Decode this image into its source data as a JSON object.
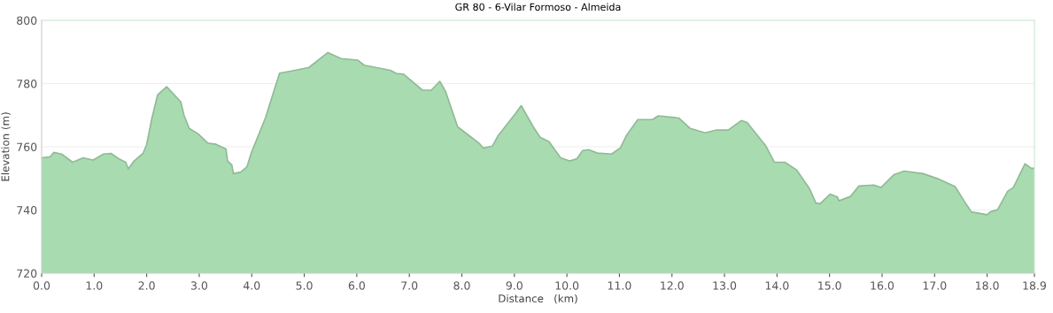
{
  "chart_data": {
    "type": "area",
    "title": "GR 80 - 6-Vilar Formoso - Almeida",
    "xlabel": "Distance   (km)",
    "ylabel": "Elevation (m)",
    "x": [
      0,
      0.16,
      0.23,
      0.38,
      0.59,
      0.79,
      0.98,
      1.18,
      1.32,
      1.46,
      1.6,
      1.65,
      1.76,
      1.93,
      2.0,
      2.1,
      2.21,
      2.38,
      2.65,
      2.71,
      2.81,
      2.98,
      3.16,
      3.32,
      3.51,
      3.54,
      3.62,
      3.65,
      3.79,
      3.91,
      3.99,
      4.26,
      4.53,
      4.76,
      5.09,
      5.45,
      5.7,
      6.02,
      6.14,
      6.64,
      6.75,
      6.89,
      7.25,
      7.42,
      7.58,
      7.69,
      7.92,
      8.14,
      8.33,
      8.41,
      8.58,
      8.69,
      9.02,
      9.13,
      9.36,
      9.49,
      9.66,
      9.88,
      10.05,
      10.19,
      10.3,
      10.41,
      10.58,
      10.85,
      11.02,
      11.13,
      11.35,
      11.63,
      11.74,
      12.13,
      12.35,
      12.63,
      12.85,
      13.07,
      13.32,
      13.43,
      13.79,
      13.95,
      14.15,
      14.37,
      14.62,
      14.74,
      14.82,
      15.01,
      15.15,
      15.18,
      15.4,
      15.56,
      15.84,
      15.98,
      16.23,
      16.42,
      16.78,
      17.06,
      17.39,
      17.56,
      17.7,
      18.0,
      18.06,
      18.2,
      18.39,
      18.5,
      18.72,
      18.84,
      18.9
    ],
    "series": [
      {
        "color": "#a9dbb0",
        "values": [
          756.5,
          756.8,
          758.2,
          757.7,
          755.1,
          756.5,
          755.8,
          757.7,
          757.9,
          756.3,
          755.1,
          753.0,
          755.5,
          757.9,
          760.7,
          769.1,
          776.5,
          779.0,
          774.2,
          770.0,
          765.8,
          764.1,
          761.2,
          760.8,
          759.3,
          755.5,
          754.3,
          751.5,
          752.0,
          753.7,
          758.0,
          769.1,
          783.3,
          784.0,
          785.1,
          789.8,
          787.9,
          787.4,
          785.8,
          784.2,
          783.2,
          783.0,
          777.9,
          777.9,
          780.7,
          777.5,
          766.3,
          763.5,
          761.1,
          759.6,
          760.2,
          763.5,
          770.5,
          773.0,
          766.3,
          763.0,
          761.6,
          756.5,
          755.5,
          756.2,
          758.8,
          759.1,
          758.0,
          757.7,
          759.7,
          763.5,
          768.6,
          768.6,
          769.8,
          769.1,
          765.8,
          764.4,
          765.3,
          765.3,
          768.3,
          767.7,
          760.2,
          755.1,
          755.1,
          752.7,
          746.7,
          742.2,
          742.0,
          745.0,
          744.1,
          742.9,
          744.3,
          747.6,
          747.9,
          747.1,
          751.2,
          752.3,
          751.5,
          749.9,
          747.4,
          742.9,
          739.4,
          738.5,
          739.4,
          740.1,
          745.9,
          747.1,
          754.6,
          753.2,
          753.2
        ]
      }
    ],
    "xlim": [
      0,
      18.9
    ],
    "ylim": [
      720,
      800
    ],
    "xticks": [
      {
        "value": 0,
        "label": "0.0"
      },
      {
        "value": 1,
        "label": "1.0"
      },
      {
        "value": 2,
        "label": "2.0"
      },
      {
        "value": 3,
        "label": "3.0"
      },
      {
        "value": 4,
        "label": "4.0"
      },
      {
        "value": 5,
        "label": "5.0"
      },
      {
        "value": 6,
        "label": "6.0"
      },
      {
        "value": 7,
        "label": "7.0"
      },
      {
        "value": 8,
        "label": "8.0"
      },
      {
        "value": 9,
        "label": "9.0"
      },
      {
        "value": 10,
        "label": "10.0"
      },
      {
        "value": 11,
        "label": "11.0"
      },
      {
        "value": 12,
        "label": "12.0"
      },
      {
        "value": 13,
        "label": "13.0"
      },
      {
        "value": 14,
        "label": "14.0"
      },
      {
        "value": 15,
        "label": "15.0"
      },
      {
        "value": 16,
        "label": "16.0"
      },
      {
        "value": 17,
        "label": "17.0"
      },
      {
        "value": 18,
        "label": "18.0"
      },
      {
        "value": 18.9,
        "label": "18.9"
      }
    ],
    "yticks": [
      720,
      740,
      760,
      780,
      800
    ],
    "grid": "y"
  }
}
